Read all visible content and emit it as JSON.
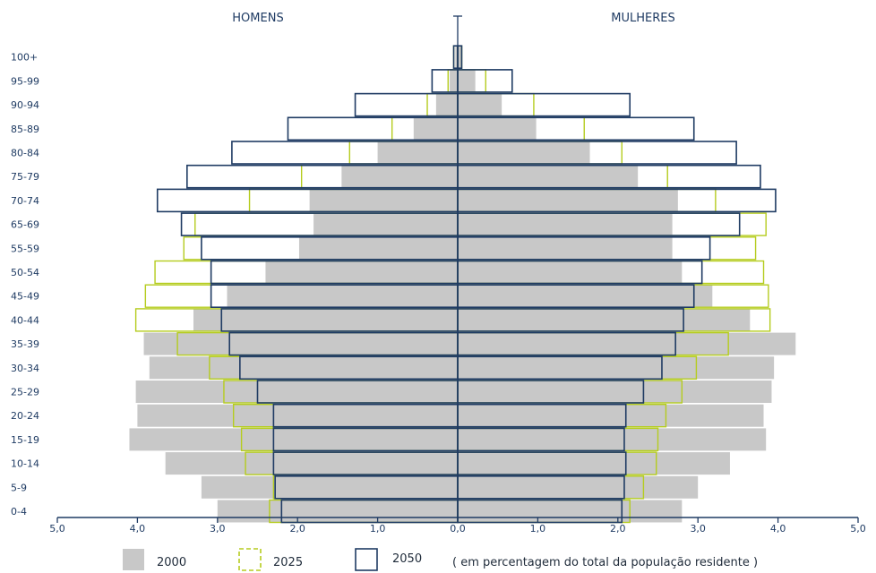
{
  "chart_data": {
    "type": "bar",
    "subtype": "population-pyramid",
    "left_title": "HOMENS",
    "right_title": "MULHERES",
    "note": "( em percentagem do total da população residente )",
    "categories": [
      "0-4",
      "5-9",
      "10-14",
      "15-19",
      "20-24",
      "25-29",
      "30-34",
      "35-39",
      "40-44",
      "45-49",
      "50-54",
      "55-59",
      "65-69",
      "70-74",
      "75-79",
      "80-84",
      "85-89",
      "90-94",
      "95-99",
      "100+"
    ],
    "x_ticks": [
      "5,0",
      "4,0",
      "3,0",
      "2,0",
      "1,0",
      "0,0",
      "1,0",
      "2,0",
      "3,0",
      "4,0",
      "5,0"
    ],
    "xlim": [
      -5,
      5
    ],
    "series": [
      {
        "name": "2000",
        "style": "filled",
        "color": "#c8c8c8",
        "men": [
          3.0,
          3.2,
          3.65,
          4.1,
          4.0,
          4.02,
          3.85,
          3.92,
          3.3,
          2.88,
          2.4,
          1.98,
          1.8,
          1.85,
          1.45,
          1.0,
          0.55,
          0.27,
          0.1,
          0.03
        ],
        "women": [
          2.8,
          3.0,
          3.4,
          3.85,
          3.82,
          3.92,
          3.95,
          4.22,
          3.65,
          3.18,
          2.8,
          2.68,
          2.68,
          2.75,
          2.25,
          1.65,
          0.98,
          0.55,
          0.22,
          0.05
        ]
      },
      {
        "name": "2025",
        "style": "outline",
        "color": "#b5cc1f",
        "men": [
          2.35,
          2.3,
          2.65,
          2.7,
          2.8,
          2.92,
          3.1,
          3.5,
          4.02,
          3.9,
          3.78,
          3.42,
          3.28,
          2.6,
          1.95,
          1.35,
          0.82,
          0.38,
          0.12,
          0.05
        ],
        "women": [
          2.15,
          2.32,
          2.48,
          2.5,
          2.6,
          2.8,
          2.98,
          3.38,
          3.9,
          3.88,
          3.82,
          3.72,
          3.85,
          3.22,
          2.62,
          2.05,
          1.58,
          0.95,
          0.35,
          0.05
        ]
      },
      {
        "name": "2050",
        "style": "outline",
        "color": "#1f3b63",
        "men": [
          2.2,
          2.28,
          2.3,
          2.3,
          2.3,
          2.5,
          2.72,
          2.85,
          2.95,
          3.08,
          3.08,
          3.2,
          3.45,
          3.75,
          3.38,
          2.82,
          2.12,
          1.28,
          0.32,
          0.05
        ],
        "women": [
          2.05,
          2.08,
          2.1,
          2.08,
          2.1,
          2.32,
          2.55,
          2.72,
          2.82,
          2.95,
          3.05,
          3.15,
          3.52,
          3.97,
          3.78,
          3.48,
          2.95,
          2.15,
          0.68,
          0.05
        ]
      }
    ]
  }
}
